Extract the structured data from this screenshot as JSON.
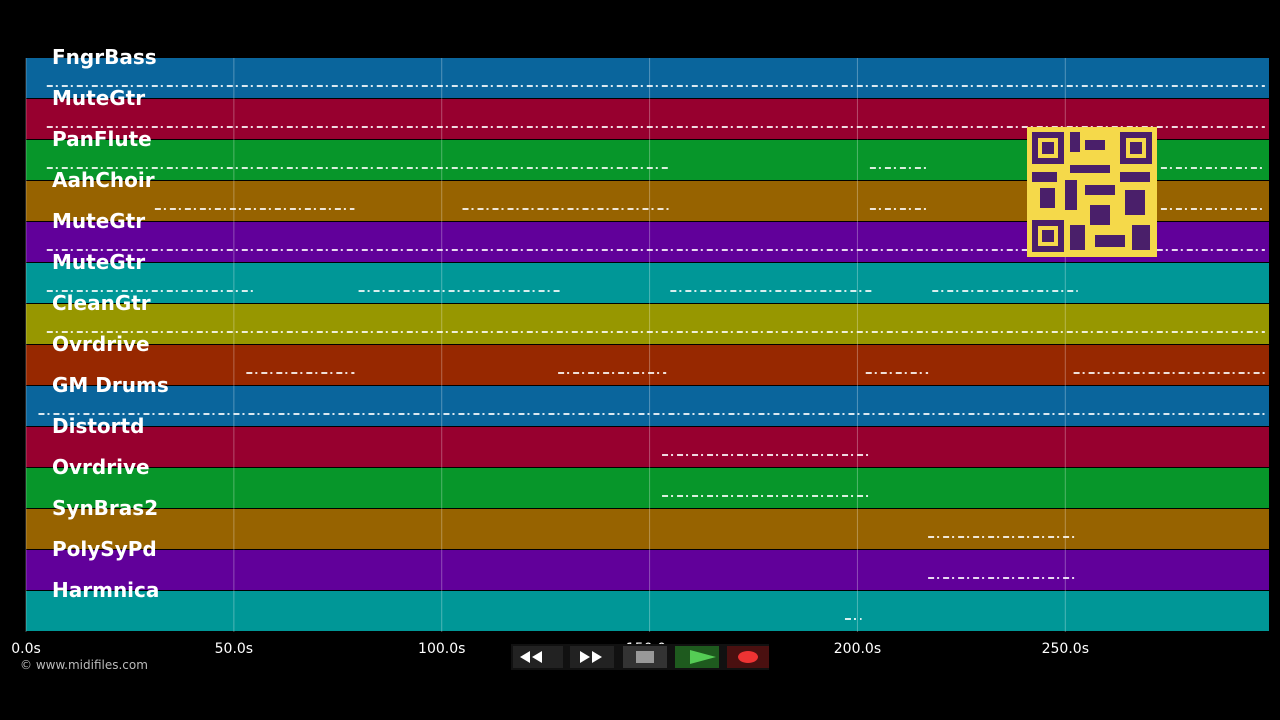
{
  "tracks": [
    {
      "name": "FngrBass",
      "color": "#0a659c",
      "spans": [
        [
          5,
          298
        ]
      ]
    },
    {
      "name": "MuteGtr",
      "color": "#97002f",
      "spans": [
        [
          5,
          298
        ]
      ]
    },
    {
      "name": "PanFlute",
      "color": "#07962a",
      "spans": [
        [
          5,
          155
        ],
        [
          203,
          217
        ],
        [
          273,
          298
        ]
      ]
    },
    {
      "name": "AahChoir",
      "color": "#976300",
      "spans": [
        [
          31,
          79
        ],
        [
          105,
          155
        ],
        [
          203,
          217
        ],
        [
          273,
          298
        ]
      ]
    },
    {
      "name": "MuteGtr",
      "color": "#61009a",
      "spans": [
        [
          5,
          298
        ]
      ]
    },
    {
      "name": "MuteGtr",
      "color": "#009797",
      "spans": [
        [
          5,
          55
        ],
        [
          80,
          129
        ],
        [
          155,
          204
        ],
        [
          218,
          253
        ]
      ]
    },
    {
      "name": "CleanGtr",
      "color": "#979700",
      "spans": [
        [
          5,
          298
        ]
      ]
    },
    {
      "name": "Ovrdrive",
      "color": "#972800",
      "spans": [
        [
          53,
          79
        ],
        [
          128,
          154
        ],
        [
          202,
          217
        ],
        [
          252,
          298
        ]
      ]
    },
    {
      "name": "GM Drums",
      "color": "#0a659c",
      "spans": [
        [
          3,
          298
        ]
      ]
    },
    {
      "name": "Distortd",
      "color": "#97002f",
      "spans": [
        [
          153,
          203
        ]
      ]
    },
    {
      "name": "Ovrdrive",
      "color": "#07962a",
      "spans": [
        [
          153,
          203
        ]
      ]
    },
    {
      "name": "SynBras2",
      "color": "#976300",
      "spans": [
        [
          217,
          253
        ]
      ]
    },
    {
      "name": "PolySyPd",
      "color": "#61009a",
      "spans": [
        [
          217,
          253
        ]
      ]
    },
    {
      "name": "Harmnica",
      "color": "#009797",
      "spans": [
        [
          197,
          201
        ]
      ]
    }
  ],
  "time_axis": {
    "xlim": [
      0,
      299
    ],
    "ticks": [
      {
        "value": 0,
        "label": "0.0s"
      },
      {
        "value": 50,
        "label": "50.0s"
      },
      {
        "value": 100,
        "label": "100.0s"
      },
      {
        "value": 150,
        "label": "150.0s"
      },
      {
        "value": 200,
        "label": "200.0s"
      },
      {
        "value": 250,
        "label": "250.0s"
      }
    ]
  },
  "copyright": "© www.midifiles.com"
}
